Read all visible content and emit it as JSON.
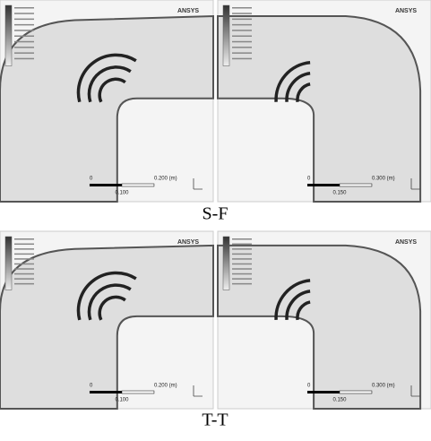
{
  "panels": [
    {
      "brand": "ANSYS",
      "scale_zero": "0",
      "scale_full": "0.200 (m)",
      "scale_half": "0.100"
    },
    {
      "brand": "ANSYS",
      "scale_zero": "0",
      "scale_full": "0.300 (m)",
      "scale_half": "0.150"
    },
    {
      "brand": "ANSYS",
      "scale_zero": "0",
      "scale_full": "0.200 (m)",
      "scale_half": "0.100"
    },
    {
      "brand": "ANSYS",
      "scale_zero": "0",
      "scale_full": "0.300 (m)",
      "scale_half": "0.150"
    }
  ],
  "captions": [
    "S-F",
    "T-T"
  ]
}
